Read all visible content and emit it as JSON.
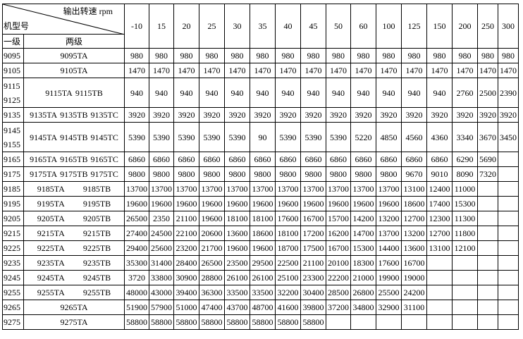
{
  "header": {
    "speed_label": "输出转速 rpm",
    "model_label": "机型号",
    "level1_label": "一级",
    "level2_label": "两级",
    "speeds": [
      "-10",
      "15",
      "20",
      "25",
      "30",
      "35",
      "40",
      "45",
      "50",
      "60",
      "100",
      "125",
      "150",
      "200",
      "250",
      "300"
    ]
  },
  "rows": [
    {
      "level1": [
        "9095"
      ],
      "level2": [
        "9095TA"
      ],
      "values": [
        "980",
        "980",
        "980",
        "980",
        "980",
        "980",
        "980",
        "980",
        "980",
        "980",
        "980",
        "980",
        "980",
        "980",
        "980",
        "980"
      ]
    },
    {
      "level1": [
        "9105"
      ],
      "level2": [
        "9105TA"
      ],
      "values": [
        "1470",
        "1470",
        "1470",
        "1470",
        "1470",
        "1470",
        "1470",
        "1470",
        "1470",
        "1470",
        "1470",
        "1470",
        "1470",
        "1470",
        "1470",
        "1470"
      ]
    },
    {
      "level1": [
        "9115",
        "9125"
      ],
      "level2": [
        "9115TA",
        "9115TB"
      ],
      "values": [
        "940",
        "940",
        "940",
        "940",
        "940",
        "940",
        "940",
        "940",
        "940",
        "940",
        "940",
        "940",
        "940",
        "2760",
        "2500",
        "2390"
      ]
    },
    {
      "level1": [
        "9135"
      ],
      "level2": [
        "9135TA",
        "9135TB",
        "9135TC"
      ],
      "values": [
        "3920",
        "3920",
        "3920",
        "3920",
        "3920",
        "3920",
        "3920",
        "3920",
        "3920",
        "3920",
        "3920",
        "3920",
        "3920",
        "3920",
        "3920",
        "3920"
      ]
    },
    {
      "level1": [
        "9145",
        "9155"
      ],
      "level2": [
        "9145TA",
        "9145TB",
        "9145TC"
      ],
      "values": [
        "5390",
        "5390",
        "5390",
        "5390",
        "5390",
        "90",
        "5390",
        "5390",
        "5390",
        "5220",
        "4850",
        "4560",
        "4360",
        "3340",
        "3670",
        "3450"
      ]
    },
    {
      "level1": [
        "9165"
      ],
      "level2": [
        "9165TA",
        "9165TB",
        "9165TC"
      ],
      "values": [
        "6860",
        "6860",
        "6860",
        "6860",
        "6860",
        "6860",
        "6860",
        "6860",
        "6860",
        "6860",
        "6860",
        "6860",
        "6860",
        "6290",
        "5690",
        ""
      ]
    },
    {
      "level1": [
        "9175"
      ],
      "level2": [
        "9175TA",
        "9175TB",
        "9175TC"
      ],
      "values": [
        "9800",
        "9800",
        "9800",
        "9800",
        "9800",
        "9800",
        "9800",
        "9800",
        "9800",
        "9800",
        "9800",
        "9670",
        "9010",
        "8090",
        "7320",
        ""
      ]
    },
    {
      "level1": [
        "9185"
      ],
      "level2": [
        "9185TA",
        "9185TB"
      ],
      "values": [
        "13700",
        "13700",
        "13700",
        "13700",
        "13700",
        "13700",
        "13700",
        "13700",
        "13700",
        "13700",
        "13700",
        "13100",
        "12400",
        "11000",
        "",
        ""
      ]
    },
    {
      "level1": [
        "9195"
      ],
      "level2": [
        "9195TA",
        "9195TB"
      ],
      "values": [
        "19600",
        "19600",
        "19600",
        "19600",
        "19600",
        "19600",
        "19600",
        "19600",
        "19600",
        "19600",
        "19600",
        "18600",
        "17400",
        "15300",
        "",
        ""
      ]
    },
    {
      "level1": [
        "9205"
      ],
      "level2": [
        "9205TA",
        "9205TB"
      ],
      "values": [
        "26500",
        "2350",
        "21100",
        "19600",
        "18100",
        "18100",
        "17600",
        "16700",
        "15700",
        "14200",
        "13200",
        "12700",
        "12300",
        "11300",
        "",
        ""
      ]
    },
    {
      "level1": [
        "9215"
      ],
      "level2": [
        "9215TA",
        "9215TB"
      ],
      "values": [
        "27400",
        "24500",
        "22100",
        "20600",
        "13600",
        "18600",
        "18100",
        "17200",
        "16200",
        "14700",
        "13700",
        "13200",
        "12700",
        "11800",
        "",
        ""
      ]
    },
    {
      "level1": [
        "9225"
      ],
      "level2": [
        "9225TA",
        "9225TB"
      ],
      "values": [
        "29400",
        "25600",
        "23200",
        "21700",
        "19600",
        "19600",
        "18700",
        "17500",
        "16700",
        "15300",
        "14400",
        "13600",
        "13100",
        "12100",
        "",
        ""
      ]
    },
    {
      "level1": [
        "9235"
      ],
      "level2": [
        "9235TA",
        "9235TB"
      ],
      "values": [
        "35300",
        "31400",
        "28400",
        "26500",
        "23500",
        "29500",
        "22500",
        "21100",
        "20100",
        "18300",
        "17600",
        "16700",
        "",
        "",
        "",
        ""
      ]
    },
    {
      "level1": [
        "9245"
      ],
      "level2": [
        "9245TA",
        "9245TB"
      ],
      "values": [
        "3720",
        "33800",
        "30900",
        "28800",
        "26100",
        "26100",
        "25100",
        "23300",
        "22200",
        "21000",
        "19900",
        "19000",
        "",
        "",
        "",
        ""
      ]
    },
    {
      "level1": [
        "9255"
      ],
      "level2": [
        "9255TA",
        "9255TB"
      ],
      "values": [
        "48000",
        "43000",
        "39400",
        "36300",
        "33500",
        "33500",
        "32200",
        "30400",
        "28500",
        "26800",
        "25500",
        "24200",
        "",
        "",
        "",
        ""
      ]
    },
    {
      "level1": [
        "9265"
      ],
      "level2": [
        "9265TA"
      ],
      "values": [
        "51900",
        "57900",
        "51000",
        "47400",
        "43700",
        "48700",
        "41600",
        "39800",
        "37200",
        "34800",
        "32900",
        "31100",
        "",
        "",
        "",
        ""
      ]
    },
    {
      "level1": [
        "9275"
      ],
      "level2": [
        "9275TA"
      ],
      "values": [
        "58800",
        "58800",
        "58800",
        "58800",
        "58800",
        "58800",
        "58800",
        "58800",
        "",
        "",
        "",
        "",
        "",
        "",
        "",
        ""
      ]
    }
  ]
}
